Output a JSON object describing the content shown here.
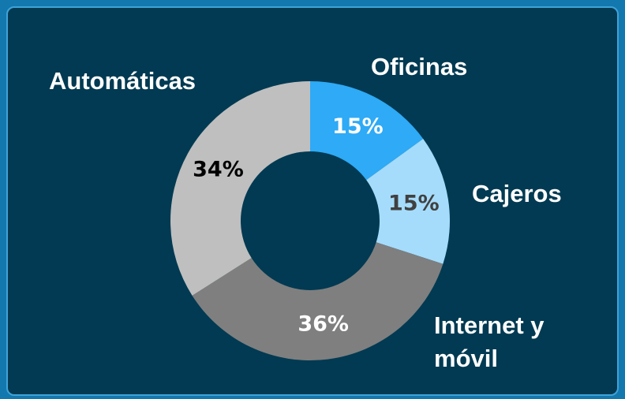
{
  "chart_data": {
    "type": "donut",
    "categories": [
      "Oficinas",
      "Cajeros",
      "Internet y móvil",
      "Automáticas"
    ],
    "values": [
      15,
      15,
      36,
      34
    ],
    "value_labels": [
      "15%",
      "15%",
      "36%",
      "34%"
    ],
    "colors": [
      "#2eaaf6",
      "#a5dcfb",
      "#7f7f7f",
      "#bfbfbf"
    ],
    "label_colors": [
      "#ffffff",
      "#404040",
      "#ffffff",
      "#000000"
    ]
  }
}
